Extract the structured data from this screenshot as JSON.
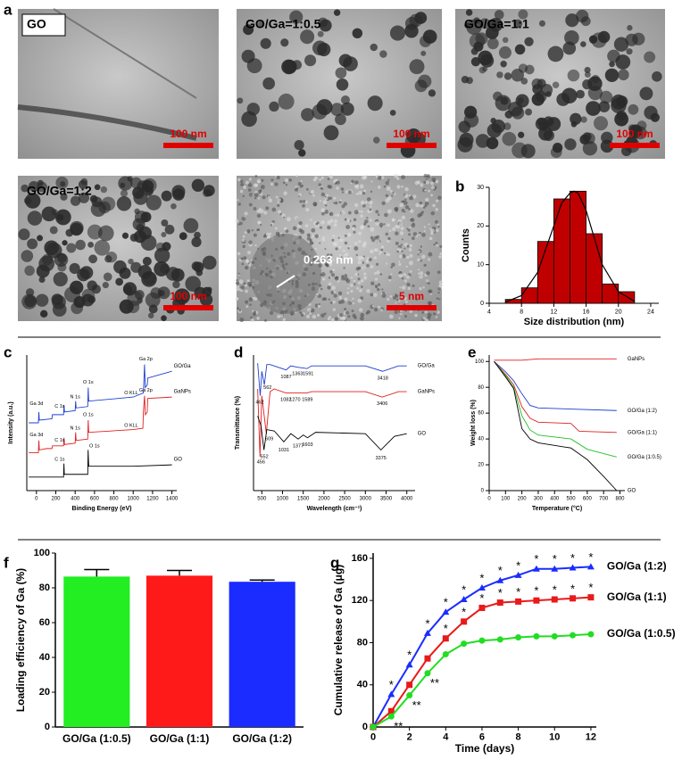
{
  "panel_labels": [
    "a",
    "b",
    "c",
    "d",
    "e",
    "f",
    "g"
  ],
  "images": [
    {
      "label": "GO",
      "scale": "100 nm"
    },
    {
      "label": "GO/Ga=1:0.5",
      "scale": "100 nm"
    },
    {
      "label": "GO/Ga=1:1",
      "scale": "100 nm"
    },
    {
      "label": "GO/Ga=1:2",
      "scale": "100 nm"
    },
    {
      "label": "0.263 nm",
      "scale": "5 nm"
    }
  ],
  "chart_data": [
    {
      "type": "histogram",
      "x_label": "Size distribution (nm)",
      "y_label": "Counts",
      "bins": [
        6,
        8,
        10,
        12,
        14,
        16,
        18,
        20,
        22
      ],
      "values": [
        1,
        4,
        16,
        27,
        29,
        18,
        5,
        3
      ],
      "color": "#c00000",
      "fit": {
        "x": [
          6,
          8,
          10,
          11,
          12,
          13,
          14,
          14.5,
          15,
          16,
          17,
          18,
          20,
          22
        ],
        "values": [
          0.3,
          2,
          8,
          14,
          20,
          26,
          28.5,
          29,
          28.5,
          24,
          17,
          10,
          3,
          0.5
        ],
        "color": "#000000"
      },
      "xlim": [
        4,
        25
      ],
      "xticks": [
        4,
        8,
        12,
        16,
        20,
        24
      ],
      "ylim": [
        0,
        30
      ],
      "yticks": [
        0,
        10,
        20,
        30
      ]
    },
    {
      "type": "line",
      "x_label": "Binding Energy (eV)",
      "y_label": "Intensity (a.u.)",
      "xlim": [
        -100,
        1450
      ],
      "xticks": [
        0,
        200,
        400,
        600,
        800,
        1000,
        1200,
        1400
      ],
      "ylim": [
        0,
        10
      ],
      "series": [
        {
          "name": "GO/Ga",
          "color": "#1f3fd0",
          "x": [
            -80,
            20,
            25,
            30,
            160,
            165,
            280,
            285,
            290,
            400,
            405,
            410,
            530,
            535,
            540,
            1000,
            1105,
            1117,
            1125,
            1145,
            1150,
            1400
          ],
          "values": [
            5.0,
            5.0,
            5.8,
            5.2,
            5.3,
            5.6,
            5.6,
            6.3,
            5.8,
            5.9,
            6.6,
            6.1,
            6.2,
            7.6,
            6.6,
            6.9,
            7.2,
            9.3,
            7.6,
            7.8,
            8.3,
            8.8
          ]
        },
        {
          "name": "GaNPs",
          "color": "#e02020",
          "x": [
            -80,
            20,
            25,
            30,
            105,
            160,
            165,
            280,
            285,
            290,
            400,
            405,
            410,
            530,
            535,
            540,
            1000,
            1100,
            1105,
            1117,
            1125,
            1145,
            1150,
            1400
          ],
          "values": [
            2.8,
            2.8,
            3.7,
            3.0,
            3.1,
            3.1,
            3.3,
            3.3,
            3.9,
            3.4,
            3.5,
            4.3,
            3.7,
            3.8,
            5.2,
            4.3,
            4.5,
            4.6,
            5.8,
            7.0,
            5.6,
            5.8,
            6.8,
            6.9
          ]
        },
        {
          "name": "GO",
          "color": "#000000",
          "x": [
            -80,
            280,
            284,
            288,
            530,
            534,
            540,
            1000,
            1400
          ],
          "values": [
            1.0,
            1.0,
            2.0,
            1.2,
            1.2,
            3.0,
            1.8,
            1.8,
            1.9
          ]
        }
      ],
      "annotations": [
        {
          "text": "Ga 2p",
          "x": 1130,
          "y": 9.7
        },
        {
          "text": "O 1s",
          "x": 535,
          "y": 8.0
        },
        {
          "text": "N 1s",
          "x": 400,
          "y": 6.9
        },
        {
          "text": "Ga 3d",
          "x": 0,
          "y": 6.4
        },
        {
          "text": "C 1s",
          "x": 240,
          "y": 6.2
        },
        {
          "text": "O KLL",
          "x": 980,
          "y": 7.2
        },
        {
          "text": "Ga 2p",
          "x": 1130,
          "y": 7.4
        },
        {
          "text": "O 1s",
          "x": 535,
          "y": 5.6
        },
        {
          "text": "N 1s",
          "x": 400,
          "y": 4.6
        },
        {
          "text": "Ga 3d",
          "x": 0,
          "y": 4.1
        },
        {
          "text": "C 1s",
          "x": 240,
          "y": 3.7
        },
        {
          "text": "O KLL",
          "x": 980,
          "y": 4.8
        },
        {
          "text": "O 1s",
          "x": 600,
          "y": 3.3
        },
        {
          "text": "C 1s",
          "x": 240,
          "y": 2.3
        }
      ]
    },
    {
      "type": "line",
      "x_label": "Wavelength (cm⁻¹)",
      "y_label": "Transmittance (%)",
      "xlim": [
        300,
        4200
      ],
      "xticks": [
        500,
        1000,
        1500,
        2000,
        2500,
        3000,
        3500,
        4000
      ],
      "ylim": [
        0,
        10
      ],
      "series": [
        {
          "name": "GO/Ga",
          "color": "#1f3fd0",
          "x": [
            400,
            462,
            500,
            562,
            620,
            700,
            1087,
            1200,
            1363,
            1591,
            1700,
            3000,
            3418,
            3800,
            4000
          ],
          "values": [
            9.4,
            7.0,
            8.8,
            7.8,
            9.3,
            9.3,
            8.9,
            9.2,
            9.1,
            9.0,
            9.2,
            9.2,
            8.8,
            9.2,
            9.2
          ]
        },
        {
          "name": "GaNPs",
          "color": "#e02020",
          "x": [
            400,
            456,
            500,
            609,
            700,
            800,
            1082,
            1270,
            1589,
            1700,
            3000,
            3406,
            3800,
            4000
          ],
          "values": [
            7.5,
            2.5,
            7.0,
            4.2,
            7.3,
            7.5,
            7.2,
            7.2,
            7.2,
            7.3,
            7.3,
            6.9,
            7.3,
            7.3
          ]
        },
        {
          "name": "GO",
          "color": "#000000",
          "x": [
            400,
            480,
            552,
            620,
            800,
            1031,
            1200,
            1377,
            1500,
            1603,
            1800,
            3000,
            3375,
            3700,
            4000
          ],
          "values": [
            5.5,
            4.8,
            3.0,
            4.5,
            4.4,
            3.6,
            4.2,
            3.8,
            4.1,
            3.9,
            4.3,
            4.2,
            3.0,
            4.0,
            4.2
          ]
        }
      ],
      "annotations": [
        {
          "text": "462",
          "x": 450,
          "y": 6.5
        },
        {
          "text": "562",
          "x": 640,
          "y": 7.6
        },
        {
          "text": "1087",
          "x": 1087,
          "y": 8.4
        },
        {
          "text": "1363",
          "x": 1363,
          "y": 8.6
        },
        {
          "text": "1591",
          "x": 1620,
          "y": 8.6
        },
        {
          "text": "3418",
          "x": 3418,
          "y": 8.3
        },
        {
          "text": "1082",
          "x": 1082,
          "y": 6.7
        },
        {
          "text": "1270",
          "x": 1300,
          "y": 6.7
        },
        {
          "text": "1589",
          "x": 1600,
          "y": 6.7
        },
        {
          "text": "3406",
          "x": 3406,
          "y": 6.4
        },
        {
          "text": "456",
          "x": 480,
          "y": 2.1
        },
        {
          "text": "609",
          "x": 680,
          "y": 3.8
        },
        {
          "text": "552",
          "x": 560,
          "y": 2.5
        },
        {
          "text": "1031",
          "x": 1031,
          "y": 3.0
        },
        {
          "text": "1377",
          "x": 1377,
          "y": 3.3
        },
        {
          "text": "1603",
          "x": 1603,
          "y": 3.4
        },
        {
          "text": "3375",
          "x": 3375,
          "y": 2.4
        }
      ]
    },
    {
      "type": "line",
      "x_label": "Temperature (°C)",
      "y_label": "Weight loss (%)",
      "xlim": [
        0,
        830
      ],
      "xticks": [
        0,
        100,
        200,
        300,
        400,
        500,
        600,
        700,
        800
      ],
      "ylim": [
        0,
        105
      ],
      "yticks": [
        0,
        20,
        40,
        60,
        80,
        100
      ],
      "series": [
        {
          "name": "GaNPs",
          "color": "#e02020",
          "x": [
            30,
            200,
            300,
            780
          ],
          "values": [
            101,
            101,
            102,
            102
          ]
        },
        {
          "name": "GO/Ga (1:2)",
          "color": "#1f3fd0",
          "x": [
            30,
            100,
            150,
            200,
            250,
            300,
            780
          ],
          "values": [
            100,
            92,
            85,
            75,
            66,
            64,
            62
          ]
        },
        {
          "name": "GO/Ga (1:1)",
          "color": "#e02020",
          "x": [
            30,
            100,
            150,
            200,
            250,
            300,
            500,
            550,
            780
          ],
          "values": [
            100,
            90,
            82,
            65,
            56,
            53,
            52,
            46,
            45
          ]
        },
        {
          "name": "GO/Ga (1:0.5)",
          "color": "#20c020",
          "x": [
            30,
            100,
            150,
            200,
            250,
            300,
            500,
            600,
            780
          ],
          "values": [
            100,
            89,
            80,
            58,
            47,
            43,
            40,
            32,
            26
          ]
        },
        {
          "name": "GO",
          "color": "#000000",
          "x": [
            30,
            100,
            150,
            200,
            250,
            300,
            500,
            600,
            700,
            780
          ],
          "values": [
            100,
            88,
            79,
            48,
            40,
            37,
            33,
            24,
            11,
            0
          ]
        }
      ]
    },
    {
      "type": "bar",
      "y_label": "Loading efficiency of Ga (%)",
      "categories": [
        "GO/Ga (1:0.5)",
        "GO/Ga (1:1)",
        "GO/Ga (1:2)"
      ],
      "values": [
        86.5,
        87,
        83.5
      ],
      "errors": [
        4,
        3,
        1
      ],
      "colors": [
        "#22ee22",
        "#ff1a1a",
        "#1a2cff"
      ],
      "ylim": [
        0,
        100
      ],
      "yticks": [
        0,
        20,
        40,
        60,
        80,
        100
      ]
    },
    {
      "type": "line",
      "x_label": "Time (days)",
      "y_label": "Cumulative release of Ga (μg)",
      "x": [
        0,
        1,
        2,
        3,
        4,
        5,
        6,
        7,
        8,
        9,
        10,
        11,
        12
      ],
      "xlim": [
        0,
        12.3
      ],
      "xticks": [
        0,
        2,
        4,
        6,
        8,
        10,
        12
      ],
      "ylim": [
        0,
        165
      ],
      "yticks": [
        0,
        40,
        80,
        120,
        160
      ],
      "series": [
        {
          "name": "GO/Ga (1:2)",
          "color": "#1a2cff",
          "marker": "triangle",
          "values": [
            0,
            31,
            59,
            89,
            109,
            121,
            132,
            139,
            144,
            150,
            150,
            151,
            152
          ],
          "significance": [
            null,
            "*",
            "*",
            "*",
            "*",
            "*",
            "*",
            "*",
            "*",
            "*",
            "*",
            "*",
            "*"
          ],
          "significance_position": "above"
        },
        {
          "name": "GO/Ga (1:1)",
          "color": "#e81a1a",
          "marker": "square",
          "values": [
            0,
            15,
            40,
            65,
            84,
            100,
            113,
            118,
            119,
            120,
            121,
            122,
            123
          ],
          "significance": [
            null,
            null,
            null,
            null,
            "*",
            "*",
            "*",
            "*",
            "*",
            "*",
            "*",
            "*",
            "*"
          ],
          "significance_position": "above"
        },
        {
          "name": "GO/Ga (1:0.5)",
          "color": "#22dd22",
          "marker": "circle",
          "values": [
            0,
            10,
            30,
            51,
            69,
            79,
            82,
            83,
            85,
            86,
            86,
            87,
            88
          ],
          "significance": [
            null,
            "**",
            "**",
            "**",
            null,
            null,
            null,
            null,
            null,
            null,
            null,
            null,
            null
          ],
          "significance_position": "below"
        }
      ]
    }
  ]
}
